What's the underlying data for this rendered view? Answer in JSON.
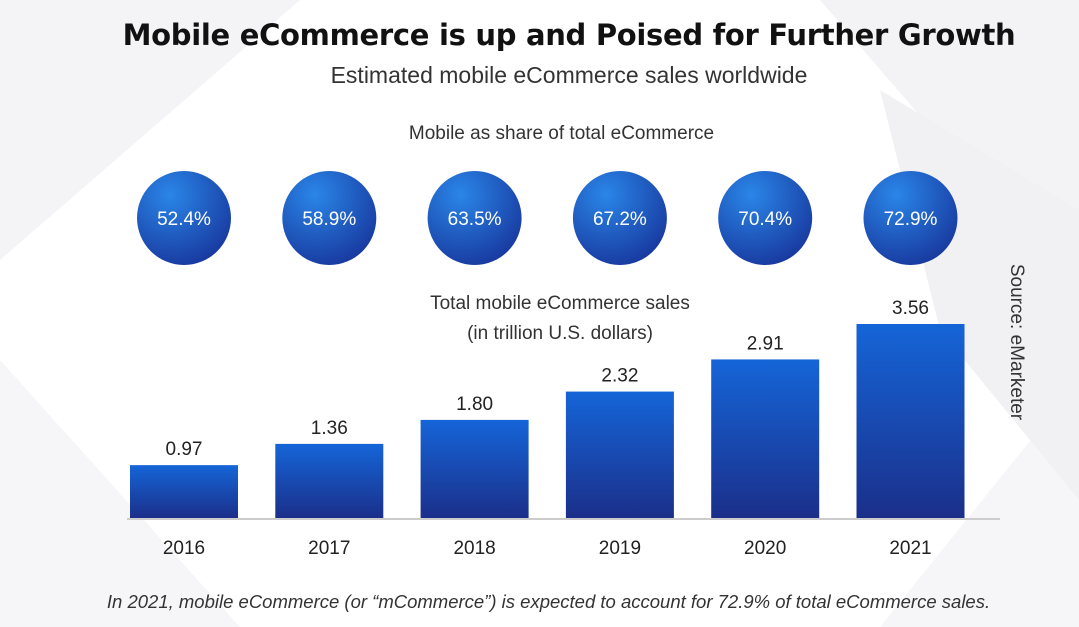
{
  "title": "Mobile eCommerce is up and Poised for Further Growth",
  "subtitle": "Estimated mobile eCommerce sales worldwide",
  "share_heading": "Mobile as share of total eCommerce",
  "sales_heading_line1": "Total mobile eCommerce sales",
  "sales_heading_line2": "(in trillion U.S. dollars)",
  "source": "Source: eMarketer",
  "footnote": "In 2021, mobile eCommerce (or “mCommerce”) is expected to account for 72.9% of total eCommerce sales.",
  "colors": {
    "bar_top": "#1565d8",
    "bar_bottom": "#1b2f8a",
    "circle_light": "#2a86e8",
    "circle_dark": "#17349a",
    "axis": "#cccccc"
  },
  "chart_data": {
    "type": "bar",
    "categories": [
      "2016",
      "2017",
      "2018",
      "2019",
      "2020",
      "2021"
    ],
    "series": [
      {
        "values": [
          0.97,
          1.36,
          1.8,
          2.32,
          2.91,
          3.56
        ],
        "labels": [
          "0.97",
          "1.36",
          "1.80",
          "2.32",
          "2.91",
          "3.56"
        ]
      }
    ],
    "share_of_total": [
      "52.4%",
      "58.9%",
      "63.5%",
      "67.2%",
      "70.4%",
      "72.9%"
    ],
    "title": "Mobile eCommerce is up and Poised for Further Growth",
    "xlabel": "",
    "ylabel": "Total mobile eCommerce sales (in trillion U.S. dollars)",
    "ylim": [
      0,
      3.56
    ],
    "grid": false,
    "legend": "none"
  }
}
